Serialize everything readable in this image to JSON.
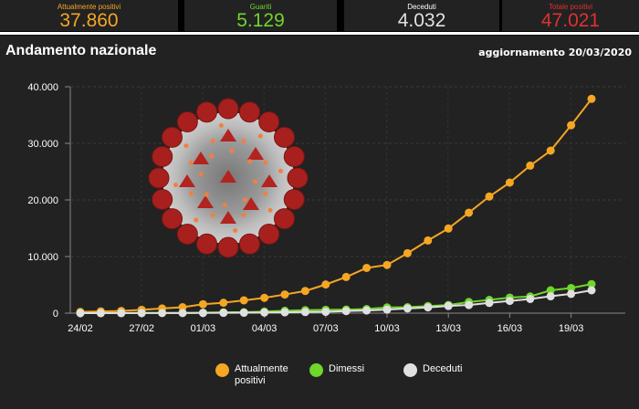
{
  "stats": [
    {
      "label": "Attualmente positivi",
      "value": "37.860",
      "color": "#f5a623"
    },
    {
      "label": "Guariti",
      "value": "5.129",
      "color": "#6fd62a"
    },
    {
      "label": "Deceduti",
      "value": "4.032",
      "color": "#e0e0e0"
    },
    {
      "label": "Totale positivi",
      "value": "47.021",
      "color": "#e03030"
    }
  ],
  "panel": {
    "title": "Andamento nazionale",
    "update": "aggiornamento 20/03/2020"
  },
  "legend": {
    "positivi_line1": "Attualmente",
    "positivi_line2": "positivi",
    "dimessi": "Dimessi",
    "deceduti": "Deceduti"
  },
  "chart_data": {
    "type": "line",
    "title": "Andamento nazionale",
    "xlabel": "",
    "ylabel": "",
    "ylim": [
      0,
      40000
    ],
    "yticks": [
      "0",
      "10.000",
      "20.000",
      "30.000",
      "40.000"
    ],
    "xticks": [
      "24/02",
      "27/02",
      "01/03",
      "04/03",
      "07/03",
      "10/03",
      "13/03",
      "16/03",
      "19/03"
    ],
    "grid": true,
    "legend_position": "bottom",
    "categories": [
      "24/02",
      "25/02",
      "26/02",
      "27/02",
      "28/02",
      "29/02",
      "01/03",
      "02/03",
      "03/03",
      "04/03",
      "05/03",
      "06/03",
      "07/03",
      "08/03",
      "09/03",
      "10/03",
      "11/03",
      "12/03",
      "13/03",
      "14/03",
      "15/03",
      "16/03",
      "17/03",
      "18/03",
      "19/03",
      "20/03"
    ],
    "series": [
      {
        "name": "Attualmente positivi",
        "color": "#f5a623",
        "values": [
          221,
          311,
          385,
          588,
          821,
          1049,
          1577,
          1835,
          2263,
          2706,
          3296,
          3916,
          5061,
          6387,
          7985,
          8514,
          10590,
          12839,
          14955,
          17750,
          20603,
          23073,
          26062,
          28710,
          33190,
          37860
        ]
      },
      {
        "name": "Dimessi",
        "color": "#6fd62a",
        "values": [
          1,
          1,
          3,
          45,
          46,
          50,
          83,
          149,
          160,
          276,
          414,
          523,
          589,
          622,
          724,
          1004,
          1045,
          1258,
          1439,
          1966,
          2335,
          2749,
          2941,
          4025,
          4440,
          5129
        ]
      },
      {
        "name": "Deceduti",
        "color": "#e0e0e0",
        "values": [
          7,
          10,
          12,
          17,
          21,
          29,
          34,
          52,
          79,
          107,
          148,
          197,
          233,
          366,
          463,
          631,
          827,
          1016,
          1266,
          1441,
          1809,
          2158,
          2503,
          2978,
          3405,
          4032
        ]
      }
    ]
  }
}
